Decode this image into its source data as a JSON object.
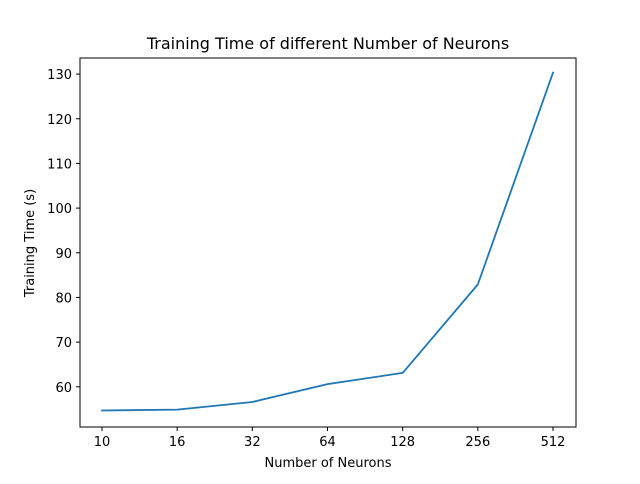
{
  "chart_data": {
    "type": "line",
    "title": "Training Time of different Number of Neurons",
    "xlabel": "Number of Neurons",
    "ylabel": "Training Time (s)",
    "x": [
      "10",
      "16",
      "32",
      "64",
      "128",
      "256",
      "512"
    ],
    "series": [
      {
        "values": [
          54.7,
          54.9,
          56.6,
          60.6,
          63.1,
          82.9,
          130.3
        ],
        "color": "#1f77b4"
      }
    ],
    "ylim": [
      51.0,
      133.6
    ],
    "yticks": [
      60,
      70,
      80,
      90,
      100,
      110,
      120,
      130
    ],
    "ytick_labels": [
      "60",
      "70",
      "80",
      "90",
      "100",
      "110",
      "120",
      "130"
    ],
    "grid": false,
    "legend": "none"
  }
}
